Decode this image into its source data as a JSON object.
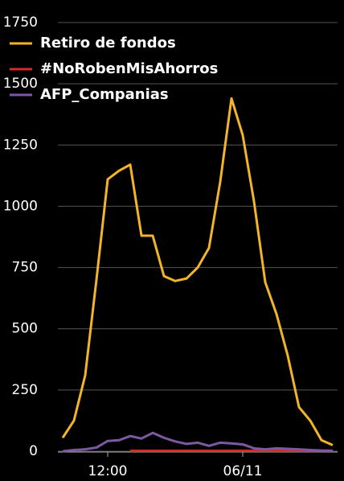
{
  "chart_data": {
    "type": "line",
    "categories": [
      null,
      null,
      null,
      null,
      "12:00",
      null,
      null,
      null,
      null,
      null,
      null,
      null,
      null,
      null,
      null,
      null,
      "06/11",
      null,
      null,
      null,
      null,
      null,
      null,
      null,
      null
    ],
    "series": [
      {
        "name": "Retiro de fondos",
        "color": "#f2b428",
        "values": [
          55,
          125,
          310,
          700,
          1110,
          1145,
          1170,
          880,
          880,
          715,
          695,
          705,
          750,
          830,
          1100,
          1440,
          1290,
          1020,
          690,
          560,
          390,
          180,
          125,
          45,
          25
        ]
      },
      {
        "name": "#NoRobenMisAhorros",
        "color": "#d42a2a",
        "values": [
          null,
          null,
          null,
          null,
          null,
          null,
          2,
          2,
          2,
          2,
          2,
          2,
          2,
          2,
          2,
          2,
          2,
          2,
          2,
          2,
          2,
          2,
          2,
          2,
          2
        ]
      },
      {
        "name": "AFP_Companias",
        "color": "#7d58a3",
        "values": [
          0,
          5,
          8,
          15,
          42,
          45,
          62,
          52,
          75,
          55,
          40,
          30,
          35,
          22,
          35,
          32,
          28,
          12,
          8,
          12,
          10,
          8,
          5,
          3,
          2
        ]
      }
    ],
    "ylim": [
      0,
      1750
    ],
    "yticks": [
      0,
      250,
      500,
      750,
      1000,
      1250,
      1500,
      1750
    ],
    "grid": true
  }
}
